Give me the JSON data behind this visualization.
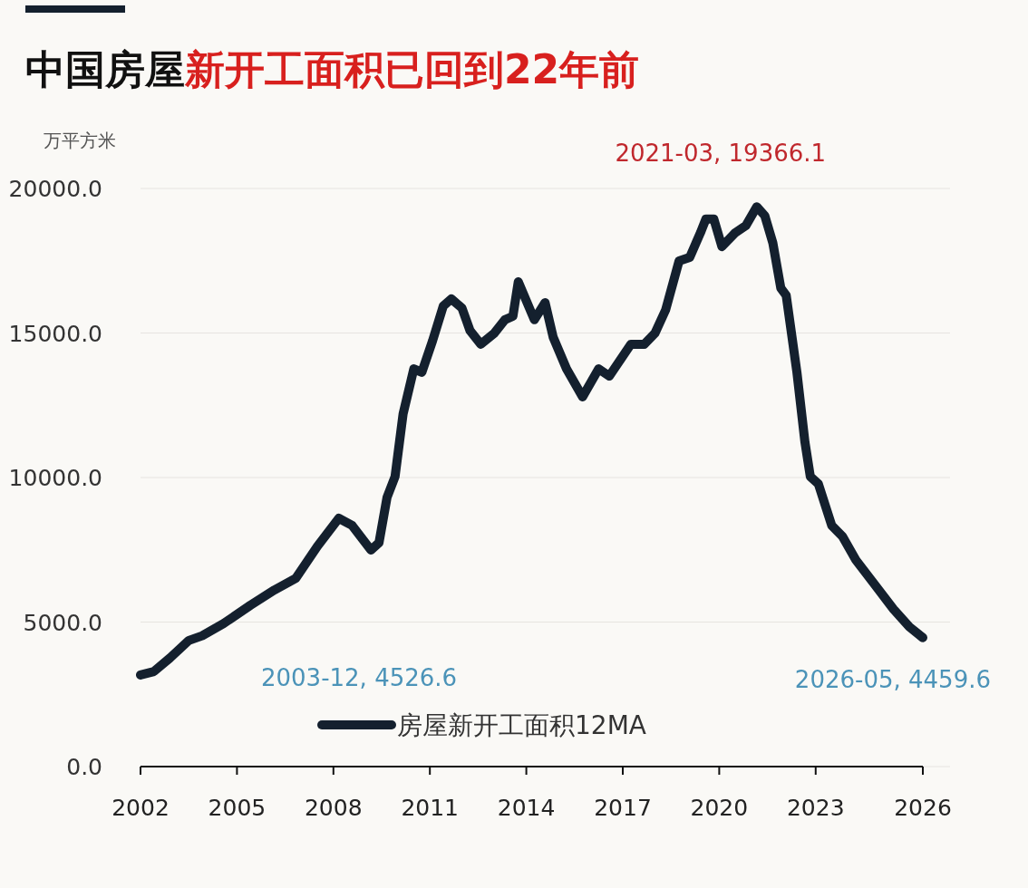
{
  "chart_data": {
    "type": "line",
    "title": "中国房屋新开工面积已回到22年前",
    "ylabel": "万平方米",
    "xlim": [
      "2002-01",
      "2026-05"
    ],
    "xticks": [
      {
        "value": "2002-01",
        "label": "2002"
      },
      {
        "value": "2005-01",
        "label": "2005"
      },
      {
        "value": "2008-01",
        "label": "2008"
      },
      {
        "value": "2011-01",
        "label": "2011"
      },
      {
        "value": "2014-01",
        "label": "2014"
      },
      {
        "value": "2017-01",
        "label": "2017"
      },
      {
        "value": "2020-01",
        "label": "2020"
      },
      {
        "value": "2023-01",
        "label": "2023"
      },
      {
        "value": "2026-05",
        "label": "2026"
      }
    ],
    "ylim": [
      0,
      20000
    ],
    "yticks": [
      {
        "value": 0,
        "label": "0.0"
      },
      {
        "value": 5000,
        "label": "5000.0"
      },
      {
        "value": 10000,
        "label": "10000.0"
      },
      {
        "value": 15000,
        "label": "15000.0"
      },
      {
        "value": 20000,
        "label": "20000.0"
      }
    ],
    "grid": "y",
    "legend": "bottom",
    "marker": "none",
    "line_style": "solid",
    "x": [
      "2002-01",
      "2002-06",
      "2002-12",
      "2003-07",
      "2003-12",
      "2004-08",
      "2005-06",
      "2006-03",
      "2006-11",
      "2007-07",
      "2008-03",
      "2008-08",
      "2009-03",
      "2009-06",
      "2009-09",
      "2009-12",
      "2010-03",
      "2010-07",
      "2010-10",
      "2011-02",
      "2011-06",
      "2011-09",
      "2012-01",
      "2012-04",
      "2012-08",
      "2013-01",
      "2013-05",
      "2013-08",
      "2013-10",
      "2014-04",
      "2014-08",
      "2014-11",
      "2015-04",
      "2015-10",
      "2016-04",
      "2016-08",
      "2017-04",
      "2017-09",
      "2018-01",
      "2018-05",
      "2018-10",
      "2019-02",
      "2019-06",
      "2019-08",
      "2019-11",
      "2020-02",
      "2020-07",
      "2020-11",
      "2021-03",
      "2021-06",
      "2021-09",
      "2021-12",
      "2022-02",
      "2022-06",
      "2022-09",
      "2022-11",
      "2023-02",
      "2023-07",
      "2023-11",
      "2024-04",
      "2024-11",
      "2025-06",
      "2025-12",
      "2026-05"
    ],
    "series": [
      {
        "name": "房屋新开工面积12MA",
        "color": "#14202e",
        "values": [
          3170,
          3290,
          3760,
          4360,
          4526.6,
          4950,
          5580,
          6110,
          6520,
          7620,
          8590,
          8340,
          7490,
          7740,
          9310,
          10030,
          12200,
          13760,
          13640,
          14730,
          15930,
          16180,
          15860,
          15080,
          14610,
          14990,
          15460,
          15580,
          16770,
          15460,
          16050,
          14860,
          13760,
          12790,
          13760,
          13510,
          14610,
          14610,
          14990,
          15800,
          17490,
          17620,
          18470,
          18940,
          18940,
          17990,
          18470,
          18720,
          19366.1,
          19060,
          18120,
          16550,
          16300,
          13640,
          11220,
          10030,
          9780,
          8340,
          7960,
          7150,
          6300,
          5450,
          4830,
          4459.6
        ]
      }
    ],
    "annotations": [
      {
        "text": "2021-03, 19366.1",
        "x": "2021-03",
        "y": 19366.1
      },
      {
        "text": "2003-12, 4526.6",
        "x": "2003-12",
        "y": 4526.6
      },
      {
        "text": "2026-05, 4459.6",
        "x": "2026-05",
        "y": 4459.6
      }
    ]
  }
}
